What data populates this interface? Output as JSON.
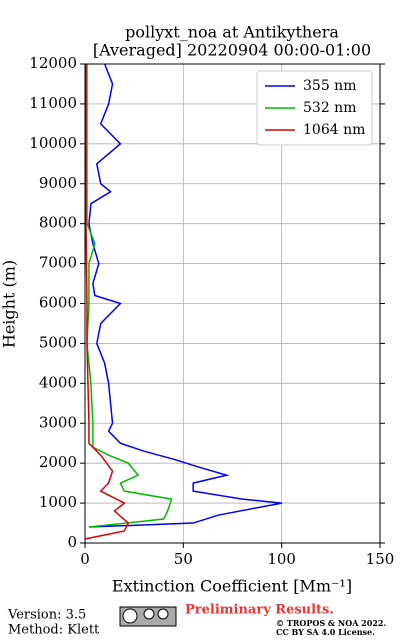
{
  "chart_data": {
    "type": "line",
    "title": "pollyxt_noa at Antikythera",
    "subtitle": "[Averaged] 20220904 00:00-01:00",
    "xlabel": "Extinction Coefficient [Mm⁻¹]",
    "ylabel": "Height (m)",
    "xlim": [
      0,
      150
    ],
    "xticks": [
      0,
      50,
      100,
      150
    ],
    "ylim": [
      0,
      12000
    ],
    "yticks": [
      0,
      1000,
      2000,
      3000,
      4000,
      5000,
      6000,
      7000,
      8000,
      9000,
      10000,
      11000,
      12000
    ],
    "grid": true,
    "legend": "upper right",
    "series": [
      {
        "name": "355 nm",
        "color": "#0000ff",
        "y": [
          400,
          500,
          700,
          1000,
          1100,
          1300,
          1500,
          1700,
          1900,
          2100,
          2300,
          2500,
          2800,
          3000,
          3500,
          4000,
          4500,
          5000,
          5500,
          6000,
          6200,
          6500,
          7000,
          7500,
          8000,
          8500,
          8800,
          9000,
          9500,
          10000,
          10500,
          11000,
          11500,
          12000
        ],
        "values": [
          2,
          55,
          68,
          100,
          80,
          55,
          55,
          72,
          58,
          45,
          30,
          18,
          12,
          14,
          13,
          12,
          10,
          6,
          8,
          18,
          5,
          4,
          7,
          4,
          2,
          3,
          13,
          8,
          6,
          18,
          8,
          12,
          14,
          10
        ]
      },
      {
        "name": "532 nm",
        "color": "#00bb00",
        "y": [
          400,
          600,
          800,
          1100,
          1300,
          1500,
          1700,
          2000,
          2200,
          2400,
          3000,
          4000,
          5000,
          6000,
          7000,
          7500,
          8000,
          9000,
          10000,
          11000,
          12000
        ],
        "values": [
          2,
          40,
          42,
          44,
          20,
          18,
          27,
          22,
          12,
          4,
          4,
          3,
          1,
          2,
          2,
          5,
          1,
          1,
          1,
          1,
          1
        ]
      },
      {
        "name": "1064 nm",
        "color": "#dd0000",
        "y": [
          100,
          300,
          500,
          800,
          1000,
          1300,
          1500,
          1800,
          2200,
          2500,
          3000,
          4000,
          5000,
          6000,
          8000,
          10000,
          12000
        ],
        "values": [
          0,
          20,
          22,
          15,
          20,
          8,
          12,
          14,
          8,
          2,
          2,
          1.5,
          1,
          1,
          0.5,
          0.5,
          0.5
        ]
      }
    ]
  },
  "footer": {
    "version": "Version: 3.5",
    "method": "Method: Klett",
    "status": "Preliminary Results.",
    "copyright": "© TROPOS & NOA 2022.",
    "license": "CC BY SA 4.0 License."
  }
}
